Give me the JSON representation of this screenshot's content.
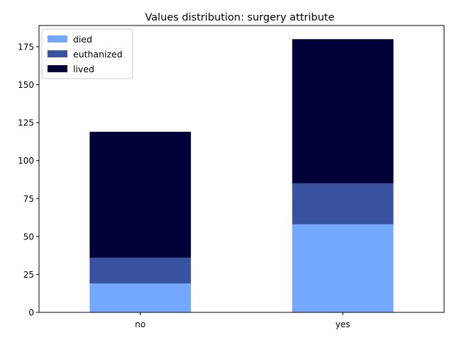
{
  "chart_data": {
    "type": "bar",
    "stacked": true,
    "title": "Values distribution: surgery attribute",
    "xlabel": "",
    "ylabel": "",
    "categories": [
      "no",
      "yes"
    ],
    "series": [
      {
        "name": "died",
        "values": [
          19,
          58
        ],
        "color": "#74a7fe"
      },
      {
        "name": "euthanized",
        "values": [
          17,
          27
        ],
        "color": "#3a53a0"
      },
      {
        "name": "lived",
        "values": [
          83,
          95
        ],
        "color": "#000039"
      }
    ],
    "ylim": [
      0,
      189
    ],
    "yticks": [
      0,
      25,
      50,
      75,
      100,
      125,
      150,
      175
    ],
    "grid": false,
    "legend_position": "top-left"
  }
}
